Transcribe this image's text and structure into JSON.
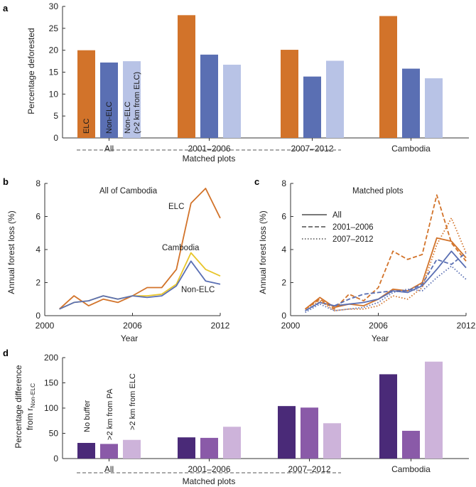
{
  "colors": {
    "elc": "#d2732a",
    "non_elc": "#5a6fb3",
    "non_elc_buffer": "#b8c3e6",
    "cambodia_yellow": "#e8c52a",
    "no_buffer": "#4a2a78",
    "pa_buffer": "#8a5aa8",
    "elc_buffer": "#cdb3da"
  },
  "chart_data": [
    {
      "panel": "a",
      "type": "bar",
      "title": "",
      "ylabel": "Percentage deforested",
      "ylim": [
        0,
        30
      ],
      "yticks": [
        0,
        5,
        10,
        15,
        20,
        25,
        30
      ],
      "categories": [
        "All",
        "2001–2006",
        "2007–2012",
        "Cambodia"
      ],
      "group_label": "Matched plots",
      "series": [
        {
          "name": "ELC",
          "color_key": "elc",
          "values": [
            20,
            28,
            20.1,
            27.8
          ]
        },
        {
          "name": "Non-ELC",
          "color_key": "non_elc",
          "values": [
            17.2,
            19,
            14,
            15.8
          ]
        },
        {
          "name": "Non-ELC (>2 km from ELC)",
          "color_key": "non_elc_buffer",
          "values": [
            17.5,
            16.7,
            17.6,
            13.6
          ]
        }
      ],
      "bar_labels": [
        "ELC",
        "Non-ELC",
        "Non-ELC",
        "(>2 km from ELC)"
      ]
    },
    {
      "panel": "b",
      "type": "line",
      "title": "All of Cambodia",
      "xlabel": "Year",
      "ylabel": "Annual forest loss (%)",
      "xlim": [
        2000,
        2012
      ],
      "ylim": [
        0,
        8
      ],
      "xticks": [
        2000,
        2006,
        2012
      ],
      "yticks": [
        0,
        2,
        4,
        6,
        8
      ],
      "x": [
        2001,
        2002,
        2003,
        2004,
        2005,
        2006,
        2007,
        2008,
        2009,
        2010,
        2011,
        2012
      ],
      "series": [
        {
          "name": "ELC",
          "color_key": "elc",
          "values": [
            0.4,
            1.2,
            0.6,
            1.0,
            0.8,
            1.2,
            1.7,
            1.7,
            2.8,
            6.8,
            7.7,
            5.9
          ]
        },
        {
          "name": "Cambodia",
          "color_key": "cambodia_yellow",
          "values": [
            0.4,
            0.8,
            0.9,
            1.2,
            1.0,
            1.2,
            1.2,
            1.3,
            1.9,
            3.8,
            2.8,
            2.4
          ]
        },
        {
          "name": "Non-ELC",
          "color_key": "non_elc",
          "values": [
            0.4,
            0.8,
            0.9,
            1.2,
            1.0,
            1.2,
            1.1,
            1.2,
            1.8,
            3.3,
            2.1,
            1.9
          ]
        }
      ],
      "annotations": [
        "ELC",
        "Cambodia",
        "Non-ELC"
      ]
    },
    {
      "panel": "c",
      "type": "line",
      "title": "Matched plots",
      "xlabel": "Year",
      "ylabel": "Annual forest loss (%)",
      "xlim": [
        2000,
        2012
      ],
      "ylim": [
        0,
        8
      ],
      "xticks": [
        2000,
        2006,
        2012
      ],
      "yticks": [
        0,
        2,
        4,
        6,
        8
      ],
      "x": [
        2001,
        2002,
        2003,
        2004,
        2005,
        2006,
        2007,
        2008,
        2009,
        2010,
        2011,
        2012
      ],
      "legend": [
        "All",
        "2001–2006",
        "2007–2012"
      ],
      "series": [
        {
          "name": "ELC All",
          "color_key": "elc",
          "style": "solid",
          "values": [
            0.4,
            1.1,
            0.5,
            0.7,
            0.6,
            1.0,
            1.6,
            1.5,
            2.0,
            4.7,
            4.5,
            3.5
          ]
        },
        {
          "name": "Non-ELC All",
          "color_key": "non_elc",
          "style": "solid",
          "values": [
            0.3,
            0.8,
            0.6,
            0.7,
            0.8,
            1.0,
            1.5,
            1.4,
            1.8,
            2.8,
            3.9,
            2.9
          ]
        },
        {
          "name": "ELC 2001–2006",
          "color_key": "elc",
          "style": "dashed",
          "values": [
            0.4,
            1.0,
            0.4,
            1.3,
            0.9,
            1.7,
            3.9,
            3.4,
            3.7,
            7.3,
            4.4,
            3.3
          ]
        },
        {
          "name": "Non-ELC 2001–2006",
          "color_key": "non_elc",
          "style": "dashed",
          "values": [
            0.3,
            0.8,
            0.6,
            1.0,
            1.3,
            1.4,
            1.5,
            1.5,
            1.9,
            3.4,
            3.1,
            3.8
          ]
        },
        {
          "name": "ELC 2007–2012",
          "color_key": "elc",
          "style": "dotted",
          "values": [
            0.4,
            0.9,
            0.3,
            0.4,
            0.4,
            0.6,
            1.2,
            1.0,
            1.7,
            4.3,
            5.9,
            3.8
          ]
        },
        {
          "name": "Non-ELC 2007–2012",
          "color_key": "non_elc",
          "style": "dotted",
          "values": [
            0.2,
            0.7,
            0.3,
            0.4,
            0.5,
            0.8,
            1.4,
            1.6,
            1.5,
            2.3,
            3.0,
            2.2
          ]
        }
      ]
    },
    {
      "panel": "d",
      "type": "bar",
      "ylabel_main": "Percentage difference",
      "ylabel_sub": "from r",
      "ylabel_subscript": "Non-ELC",
      "ylim": [
        0,
        200
      ],
      "yticks": [
        0,
        50,
        100,
        150,
        200
      ],
      "categories": [
        "All",
        "2001–2006",
        "2007–2012",
        "Cambodia"
      ],
      "group_label": "Matched plots",
      "series": [
        {
          "name": "No buffer",
          "color_key": "no_buffer",
          "values": [
            31,
            42,
            104,
            167
          ]
        },
        {
          "name": ">2 km from PA",
          "color_key": "pa_buffer",
          "values": [
            29,
            41,
            101,
            55
          ]
        },
        {
          "name": ">2 km from ELC",
          "color_key": "elc_buffer",
          "values": [
            37,
            63,
            70,
            192
          ]
        }
      ],
      "bar_labels": [
        "No buffer",
        ">2 km from PA",
        ">2 km from ELC"
      ]
    }
  ],
  "panel_letters": [
    "a",
    "b",
    "c",
    "d"
  ]
}
